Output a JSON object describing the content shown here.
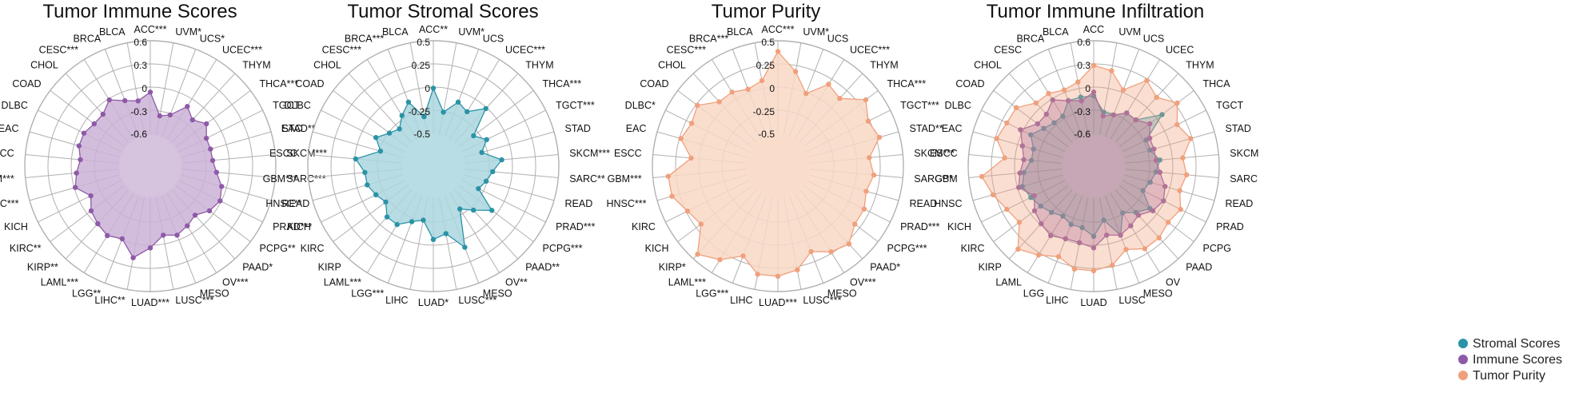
{
  "chart_data": [
    {
      "type": "radar",
      "title": "Tumor Immune Scores",
      "rlim": [
        -0.6,
        0.6
      ],
      "ticks": [
        "0.6",
        "0.3",
        "0",
        "-0.3",
        "-0.6"
      ],
      "categories": [
        "ACC***",
        "UVM*",
        "UCS*",
        "UCEC***",
        "THYM",
        "THCA***",
        "TGCT",
        "STAD**",
        "SKCM***",
        "SARC***",
        "READ",
        "PRAD***",
        "PCPG**",
        "PAAD*",
        "OV***",
        "MESO",
        "LUSC***",
        "LUAD***",
        "LIHC**",
        "LGG**",
        "LAML***",
        "KIRP**",
        "KIRC**",
        "KICH",
        "HNSC***",
        "GBM***",
        "ESCC",
        "EAC",
        "DLBC",
        "COAD",
        "CHOL",
        "CESC***",
        "BRCA",
        "BLCA"
      ],
      "series": [
        {
          "color": "#8e5aa8",
          "fill": "#cbb2d6",
          "values": [
            -0.05,
            -0.35,
            -0.3,
            -0.1,
            -0.2,
            -0.1,
            -0.2,
            -0.2,
            -0.2,
            -0.15,
            -0.05,
            0.0,
            -0.05,
            -0.15,
            -0.1,
            -0.05,
            -0.1,
            0.05,
            0.2,
            0.0,
            0.05,
            0.0,
            -0.05,
            -0.15,
            0.0,
            -0.05,
            -0.1,
            -0.05,
            -0.05,
            -0.1,
            -0.1,
            0.0,
            -0.1,
            -0.15
          ]
        }
      ]
    },
    {
      "type": "radar",
      "title": "Tumor Stromal Scores",
      "rlim": [
        -0.5,
        0.5
      ],
      "ticks": [
        "0.5",
        "0.25",
        "0",
        "-0.25",
        "-0.5"
      ],
      "categories": [
        "ACC**",
        "UVM*",
        "UCS",
        "UCEC***",
        "THYM",
        "THCA***",
        "TGCT***",
        "STAD",
        "SKCM***",
        "SARC**",
        "READ",
        "PRAD***",
        "PCPG***",
        "PAAD**",
        "OV**",
        "MESO",
        "LUSC***",
        "LUAD*",
        "LIHC",
        "LGG***",
        "LAML***",
        "KIRP",
        "KIRC",
        "KICH",
        "HNSC**",
        "GBM***",
        "ESCC",
        "EAC",
        "DLBC",
        "COAD",
        "CHOL",
        "CESC***",
        "BRCA***",
        "BLCA"
      ],
      "series": [
        {
          "color": "#2a93a6",
          "fill": "#aad6de",
          "values": [
            0.0,
            -0.25,
            -0.1,
            -0.15,
            0.0,
            -0.3,
            -0.2,
            -0.3,
            -0.1,
            -0.2,
            -0.25,
            -0.3,
            -0.05,
            -0.2,
            -0.3,
            0.1,
            -0.1,
            -0.05,
            -0.25,
            -0.2,
            -0.1,
            -0.1,
            -0.2,
            -0.15,
            -0.1,
            -0.1,
            0.0,
            -0.25,
            -0.15,
            -0.25,
            -0.3,
            -0.2,
            -0.1,
            -0.3
          ]
        }
      ]
    },
    {
      "type": "radar",
      "title": "Tumor Purity",
      "rlim": [
        -0.5,
        0.5
      ],
      "ticks": [
        "0.5",
        "0.25",
        "0",
        "-0.25",
        "-0.5"
      ],
      "categories": [
        "ACC***",
        "UVM*",
        "UCS",
        "UCEC***",
        "THYM",
        "THCA***",
        "TGCT***",
        "STAD**",
        "SKCM***",
        "SARC***",
        "READ",
        "PRAD***",
        "PCPG***",
        "PAAD*",
        "OV***",
        "MESO",
        "LUSC***",
        "LUAD***",
        "LIHC",
        "LGG***",
        "LAML***",
        "KIRP*",
        "KICH",
        "KIRC",
        "HNSC***",
        "GBM***",
        "ESCC",
        "EAC",
        "DLBC*",
        "COAD",
        "CHOL",
        "CESC***",
        "BRCA***",
        "BLCA"
      ],
      "series": [
        {
          "color": "#f0a07c",
          "fill": "#f8d8c6",
          "values": [
            0.4,
            0.2,
            0.0,
            0.2,
            0.15,
            0.35,
            0.25,
            0.3,
            0.15,
            0.2,
            0.15,
            0.2,
            0.2,
            0.3,
            0.25,
            0.15,
            0.3,
            0.35,
            0.35,
            0.2,
            0.35,
            0.45,
            0.2,
            0.25,
            0.35,
            0.35,
            0.1,
            0.25,
            0.2,
            0.25,
            0.1,
            0.1,
            0.05,
            0.1
          ]
        }
      ]
    },
    {
      "type": "radar",
      "title": "Tumor Immune Infiltration",
      "rlim": [
        -0.6,
        0.6
      ],
      "ticks": [
        "0.6",
        "0.3",
        "0",
        "-0.3",
        "-0.6"
      ],
      "categories": [
        "ACC",
        "UVM",
        "UCS",
        "UCEC",
        "THYM",
        "THCA",
        "TGCT",
        "STAD",
        "SKCM",
        "SARC",
        "READ",
        "PRAD",
        "PCPG",
        "PAAD",
        "OV",
        "MESO",
        "LUSC",
        "LUAD",
        "LIHC",
        "LGG",
        "LAML",
        "KIRP",
        "KIRC",
        "KICH",
        "HNSC",
        "GBM",
        "ESCC",
        "EAC",
        "DLBC",
        "COAD",
        "CHOL",
        "CESC",
        "BRCA",
        "BLCA"
      ],
      "series": [
        {
          "name": "Stromal Scores",
          "color": "#2a93a6",
          "fill": "#2a93a6",
          "values": [
            -0.1,
            -0.3,
            -0.3,
            -0.2,
            -0.2,
            0.1,
            -0.25,
            -0.25,
            -0.15,
            -0.2,
            -0.25,
            -0.3,
            -0.1,
            -0.2,
            -0.3,
            -0.05,
            -0.3,
            -0.1,
            -0.2,
            -0.2,
            -0.25,
            -0.2,
            -0.15,
            -0.1,
            -0.05,
            -0.1,
            -0.2,
            -0.2,
            -0.1,
            -0.2,
            -0.25,
            -0.25,
            -0.1,
            -0.1
          ]
        },
        {
          "name": "Immune Scores",
          "color": "#8e5aa8",
          "fill": "#8e5aa8",
          "values": [
            -0.05,
            -0.35,
            -0.3,
            -0.2,
            -0.2,
            -0.1,
            -0.2,
            -0.2,
            -0.2,
            -0.15,
            -0.05,
            0.0,
            -0.05,
            -0.15,
            -0.1,
            -0.05,
            -0.1,
            0.05,
            0.0,
            0.0,
            0.05,
            0.0,
            -0.05,
            -0.15,
            0.0,
            -0.05,
            -0.1,
            -0.05,
            0.05,
            -0.1,
            -0.1,
            0.0,
            -0.1,
            -0.15
          ]
        },
        {
          "name": "Tumor Purity",
          "color": "#f0a07c",
          "fill": "#f0a07c",
          "values": [
            0.3,
            0.25,
            0.05,
            0.3,
            0.2,
            0.35,
            0.2,
            0.3,
            0.15,
            0.2,
            0.15,
            0.25,
            0.2,
            0.25,
            0.25,
            0.15,
            0.3,
            0.35,
            0.35,
            0.25,
            0.35,
            0.45,
            0.2,
            0.25,
            0.35,
            0.45,
            0.15,
            0.3,
            0.25,
            0.25,
            0.1,
            0.1,
            0.05,
            0.1
          ]
        }
      ],
      "legend_position": "bottom-right"
    }
  ]
}
